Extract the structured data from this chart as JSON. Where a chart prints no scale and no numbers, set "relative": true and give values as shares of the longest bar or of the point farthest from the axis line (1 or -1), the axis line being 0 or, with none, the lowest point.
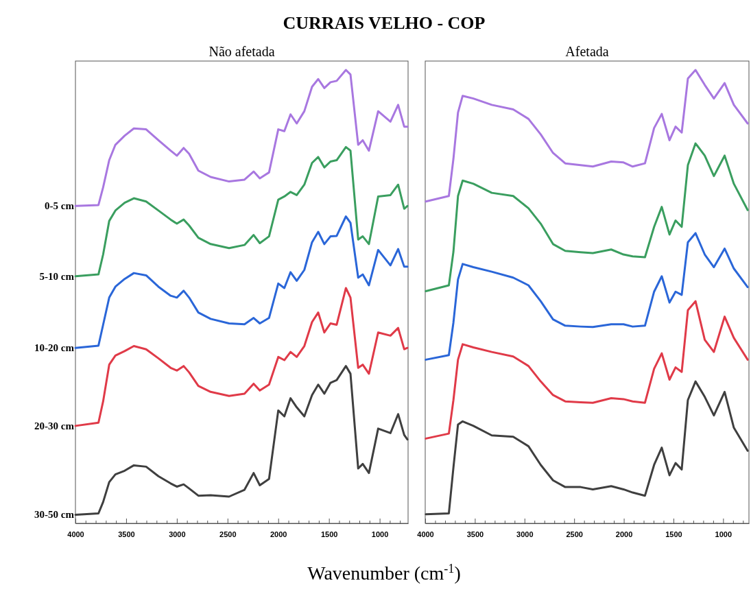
{
  "chart_data": [
    {
      "type": "line",
      "title": "CURRAIS VELHO - COP",
      "subtitle": "Não afetada",
      "relative": true,
      "tick_labels": "x",
      "x": [
        4000,
        3773,
        3727,
        3667,
        3606,
        3515,
        3424,
        3303,
        3182,
        3061,
        3000,
        2933,
        2879,
        2788,
        2667,
        2485,
        2333,
        2243,
        2182,
        2091,
        2000,
        1940,
        1879,
        1818,
        1743,
        1667,
        1606,
        1546,
        1485,
        1424,
        1333,
        1288,
        1212,
        1167,
        1106,
        1015,
        894,
        818,
        758,
        727
      ],
      "xlim": [
        4000,
        720
      ],
      "xticks": [
        4000,
        {
          "value": 3900,
          "label": null
        },
        {
          "value": 3800,
          "label": null
        },
        {
          "value": 3700,
          "label": null
        },
        {
          "value": 3600,
          "label": null
        },
        3500,
        {
          "value": 3400,
          "label": null
        },
        {
          "value": 3300,
          "label": null
        },
        {
          "value": 3200,
          "label": null
        },
        {
          "value": 3100,
          "label": null
        },
        3000,
        {
          "value": 2900,
          "label": null
        },
        {
          "value": 2800,
          "label": null
        },
        {
          "value": 2700,
          "label": null
        },
        {
          "value": 2600,
          "label": null
        },
        2500,
        {
          "value": 2400,
          "label": null
        },
        {
          "value": 2300,
          "label": null
        },
        {
          "value": 2200,
          "label": null
        },
        {
          "value": 2100,
          "label": null
        },
        2000,
        {
          "value": 1900,
          "label": null
        },
        {
          "value": 1800,
          "label": null
        },
        {
          "value": 1700,
          "label": null
        },
        {
          "value": 1600,
          "label": null
        },
        1500,
        {
          "value": 1400,
          "label": null
        },
        {
          "value": 1300,
          "label": null
        },
        {
          "value": 1200,
          "label": null
        },
        {
          "value": 1100,
          "label": null
        },
        1000,
        {
          "value": 900,
          "label": null
        },
        {
          "value": 800,
          "label": null
        }
      ],
      "series": [
        {
          "name": "0-5 cm",
          "color": "#a877e0",
          "values": [
            0.7,
            0.702,
            0.741,
            0.801,
            0.835,
            0.855,
            0.871,
            0.869,
            0.845,
            0.822,
            0.811,
            0.828,
            0.815,
            0.778,
            0.764,
            0.754,
            0.758,
            0.776,
            0.761,
            0.774,
            0.869,
            0.865,
            0.902,
            0.882,
            0.909,
            0.963,
            0.98,
            0.96,
            0.973,
            0.976,
            1.0,
            0.99,
            0.835,
            0.845,
            0.822,
            0.909,
            0.886,
            0.923,
            0.875,
            0.875
          ]
        },
        {
          "name": "5-10 cm",
          "color": "#3a9e5f",
          "values": [
            0.545,
            0.549,
            0.593,
            0.667,
            0.69,
            0.707,
            0.717,
            0.71,
            0.69,
            0.67,
            0.661,
            0.67,
            0.657,
            0.63,
            0.616,
            0.607,
            0.614,
            0.636,
            0.618,
            0.633,
            0.714,
            0.721,
            0.731,
            0.724,
            0.747,
            0.795,
            0.808,
            0.785,
            0.798,
            0.801,
            0.83,
            0.822,
            0.626,
            0.633,
            0.616,
            0.721,
            0.724,
            0.747,
            0.694,
            0.7
          ]
        },
        {
          "name": "10-20 cm",
          "color": "#2a66d8",
          "values": [
            0.387,
            0.392,
            0.438,
            0.498,
            0.522,
            0.539,
            0.552,
            0.547,
            0.522,
            0.502,
            0.498,
            0.513,
            0.498,
            0.465,
            0.451,
            0.441,
            0.439,
            0.453,
            0.441,
            0.453,
            0.529,
            0.519,
            0.554,
            0.535,
            0.559,
            0.62,
            0.643,
            0.616,
            0.633,
            0.634,
            0.677,
            0.663,
            0.542,
            0.549,
            0.525,
            0.603,
            0.569,
            0.605,
            0.566,
            0.566
          ]
        },
        {
          "name": "20-30 cm",
          "color": "#e03a48",
          "values": [
            0.215,
            0.222,
            0.269,
            0.35,
            0.37,
            0.38,
            0.391,
            0.384,
            0.364,
            0.343,
            0.337,
            0.347,
            0.333,
            0.303,
            0.29,
            0.281,
            0.286,
            0.308,
            0.293,
            0.306,
            0.367,
            0.36,
            0.378,
            0.367,
            0.391,
            0.444,
            0.465,
            0.421,
            0.441,
            0.438,
            0.519,
            0.498,
            0.343,
            0.35,
            0.33,
            0.421,
            0.414,
            0.431,
            0.384,
            0.387
          ]
        },
        {
          "name": "30-50 cm",
          "color": "#3f3f3f",
          "values": [
            0.019,
            0.022,
            0.047,
            0.091,
            0.108,
            0.116,
            0.128,
            0.125,
            0.104,
            0.088,
            0.081,
            0.086,
            0.077,
            0.061,
            0.062,
            0.059,
            0.074,
            0.111,
            0.084,
            0.098,
            0.249,
            0.236,
            0.276,
            0.256,
            0.236,
            0.283,
            0.306,
            0.286,
            0.31,
            0.316,
            0.347,
            0.33,
            0.121,
            0.131,
            0.111,
            0.209,
            0.199,
            0.241,
            0.195,
            0.185
          ]
        }
      ]
    },
    {
      "type": "line",
      "subtitle": "Afetada",
      "xlabel": "Wavenumber (cm$^{-1}$)",
      "relative": true,
      "tick_labels": "x",
      "x": [
        3994,
        3762,
        3716,
        3670,
        3623,
        3515,
        3330,
        3114,
        2960,
        2837,
        2713,
        2590,
        2435,
        2312,
        2127,
        2003,
        1911,
        1787,
        1695,
        1618,
        1540,
        1479,
        1417,
        1355,
        1278,
        1185,
        1093,
        985,
        892,
        753
      ],
      "xlim": [
        4000,
        740
      ],
      "xticks": [
        4000,
        {
          "value": 3900,
          "label": null
        },
        {
          "value": 3800,
          "label": null
        },
        {
          "value": 3700,
          "label": null
        },
        {
          "value": 3600,
          "label": null
        },
        3500,
        {
          "value": 3400,
          "label": null
        },
        {
          "value": 3300,
          "label": null
        },
        {
          "value": 3200,
          "label": null
        },
        {
          "value": 3100,
          "label": null
        },
        3000,
        {
          "value": 2900,
          "label": null
        },
        {
          "value": 2800,
          "label": null
        },
        {
          "value": 2700,
          "label": null
        },
        {
          "value": 2600,
          "label": null
        },
        2500,
        {
          "value": 2400,
          "label": null
        },
        {
          "value": 2300,
          "label": null
        },
        {
          "value": 2200,
          "label": null
        },
        {
          "value": 2100,
          "label": null
        },
        2000,
        {
          "value": 1900,
          "label": null
        },
        {
          "value": 1800,
          "label": null
        },
        {
          "value": 1700,
          "label": null
        },
        {
          "value": 1600,
          "label": null
        },
        1500,
        {
          "value": 1400,
          "label": null
        },
        {
          "value": 1300,
          "label": null
        },
        {
          "value": 1200,
          "label": null
        },
        {
          "value": 1100,
          "label": null
        },
        1000,
        {
          "value": 900,
          "label": null
        },
        {
          "value": 800,
          "label": null
        }
      ],
      "series": [
        {
          "color": "#a877e0",
          "values": [
            0.71,
            0.722,
            0.804,
            0.906,
            0.943,
            0.937,
            0.923,
            0.913,
            0.892,
            0.858,
            0.817,
            0.794,
            0.79,
            0.787,
            0.798,
            0.796,
            0.787,
            0.794,
            0.872,
            0.903,
            0.845,
            0.875,
            0.862,
            0.981,
            1.0,
            0.967,
            0.937,
            0.971,
            0.923,
            0.882
          ]
        },
        {
          "color": "#3a9e5f",
          "values": [
            0.512,
            0.525,
            0.599,
            0.722,
            0.756,
            0.749,
            0.729,
            0.722,
            0.695,
            0.661,
            0.616,
            0.601,
            0.598,
            0.596,
            0.604,
            0.593,
            0.589,
            0.587,
            0.654,
            0.698,
            0.637,
            0.668,
            0.654,
            0.79,
            0.838,
            0.811,
            0.766,
            0.811,
            0.749,
            0.691
          ]
        },
        {
          "color": "#2a66d8",
          "values": [
            0.361,
            0.371,
            0.443,
            0.538,
            0.572,
            0.565,
            0.555,
            0.542,
            0.525,
            0.49,
            0.45,
            0.436,
            0.434,
            0.433,
            0.439,
            0.439,
            0.434,
            0.436,
            0.511,
            0.545,
            0.487,
            0.511,
            0.504,
            0.62,
            0.64,
            0.593,
            0.565,
            0.606,
            0.562,
            0.521
          ]
        },
        {
          "color": "#e03a48",
          "values": [
            0.187,
            0.198,
            0.272,
            0.361,
            0.395,
            0.388,
            0.378,
            0.368,
            0.347,
            0.313,
            0.283,
            0.269,
            0.267,
            0.266,
            0.276,
            0.274,
            0.269,
            0.266,
            0.341,
            0.375,
            0.317,
            0.344,
            0.334,
            0.47,
            0.49,
            0.405,
            0.378,
            0.456,
            0.409,
            0.361
          ]
        },
        {
          "color": "#3f3f3f",
          "values": [
            0.02,
            0.022,
            0.123,
            0.218,
            0.225,
            0.215,
            0.194,
            0.191,
            0.17,
            0.129,
            0.095,
            0.08,
            0.08,
            0.075,
            0.082,
            0.075,
            0.068,
            0.061,
            0.129,
            0.167,
            0.106,
            0.133,
            0.119,
            0.272,
            0.313,
            0.279,
            0.238,
            0.29,
            0.211,
            0.16
          ]
        }
      ]
    }
  ]
}
